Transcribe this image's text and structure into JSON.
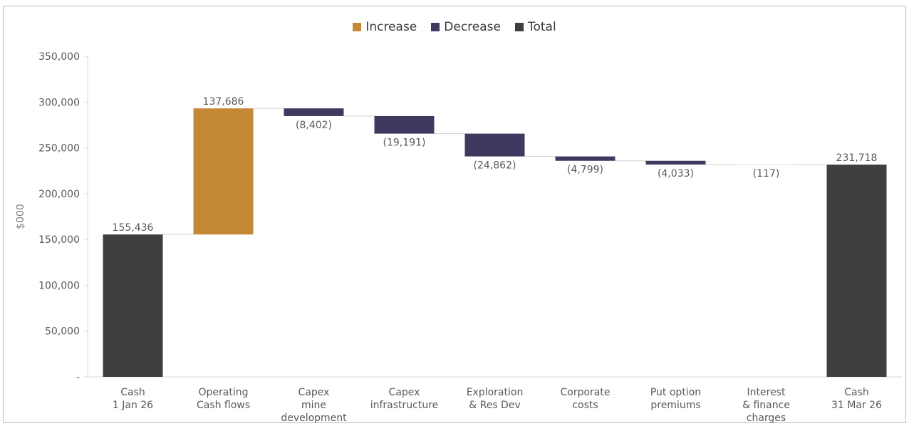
{
  "chart_data": {
    "type": "bar",
    "subtype": "waterfall",
    "ylabel": "$000",
    "ylim": [
      0,
      350000
    ],
    "yticks": [
      "-",
      "50,000",
      "100,000",
      "150,000",
      "200,000",
      "250,000",
      "300,000",
      "350,000"
    ],
    "ytick_values": [
      0,
      50000,
      100000,
      150000,
      200000,
      250000,
      300000,
      350000
    ],
    "grid": false,
    "legend_position": "top-center",
    "legend": [
      {
        "name": "Increase",
        "color": "#C48837"
      },
      {
        "name": "Decrease",
        "color": "#3F3960"
      },
      {
        "name": "Total",
        "color": "#3F3F3F"
      }
    ],
    "categories": [
      [
        "Cash",
        "1 Jan 26"
      ],
      [
        "Operating",
        "Cash flows"
      ],
      [
        "Capex",
        "mine",
        "development"
      ],
      [
        "Capex",
        "infrastructure"
      ],
      [
        "Exploration",
        "& Res Dev"
      ],
      [
        "Corporate",
        "costs"
      ],
      [
        "Put option",
        "premiums"
      ],
      [
        "Interest",
        "& finance",
        "charges"
      ],
      [
        "Cash",
        "31 Mar 26"
      ]
    ],
    "values": [
      155436,
      137686,
      -8402,
      -19191,
      -24862,
      -4799,
      -4033,
      -117,
      231718
    ],
    "kinds": [
      "total",
      "increase",
      "decrease",
      "decrease",
      "decrease",
      "decrease",
      "decrease",
      "decrease",
      "total"
    ],
    "data_labels": [
      "155,436",
      "137,686",
      "(8,402)",
      "(19,191)",
      "(24,862)",
      "(4,799)",
      "(4,033)",
      "(117)",
      "231,718"
    ]
  }
}
